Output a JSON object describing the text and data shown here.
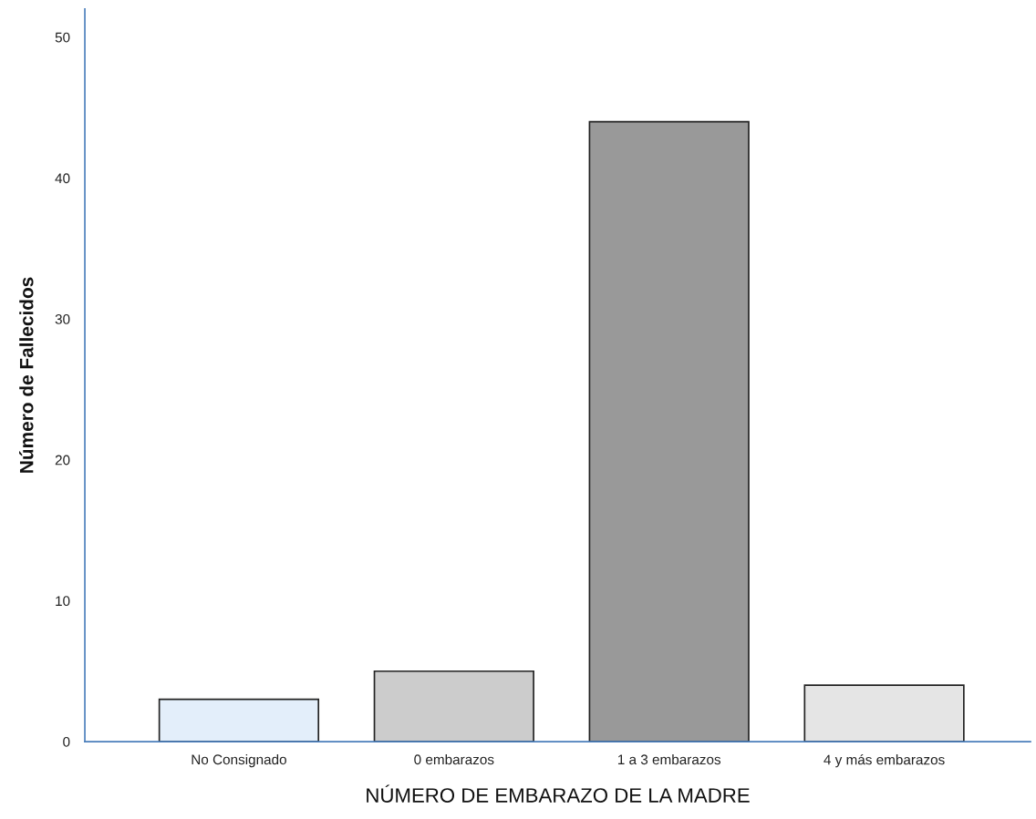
{
  "chart_data": {
    "type": "bar",
    "xlabel": "NÚMERO DE EMBARAZO DE LA MADRE",
    "ylabel": "Número de Fallecidos",
    "categories": [
      "No Consignado",
      "0 embarazos",
      "1 a 3 embarazos",
      "4 y más embarazos"
    ],
    "values": [
      3,
      5,
      44,
      4
    ],
    "colors": [
      "#e3eefa",
      "#cccccc",
      "#999999",
      "#e5e5e5"
    ],
    "ylim": [
      0,
      52
    ],
    "yticks": [
      0,
      10,
      20,
      30,
      40,
      50
    ],
    "grid": false,
    "legend": false
  }
}
